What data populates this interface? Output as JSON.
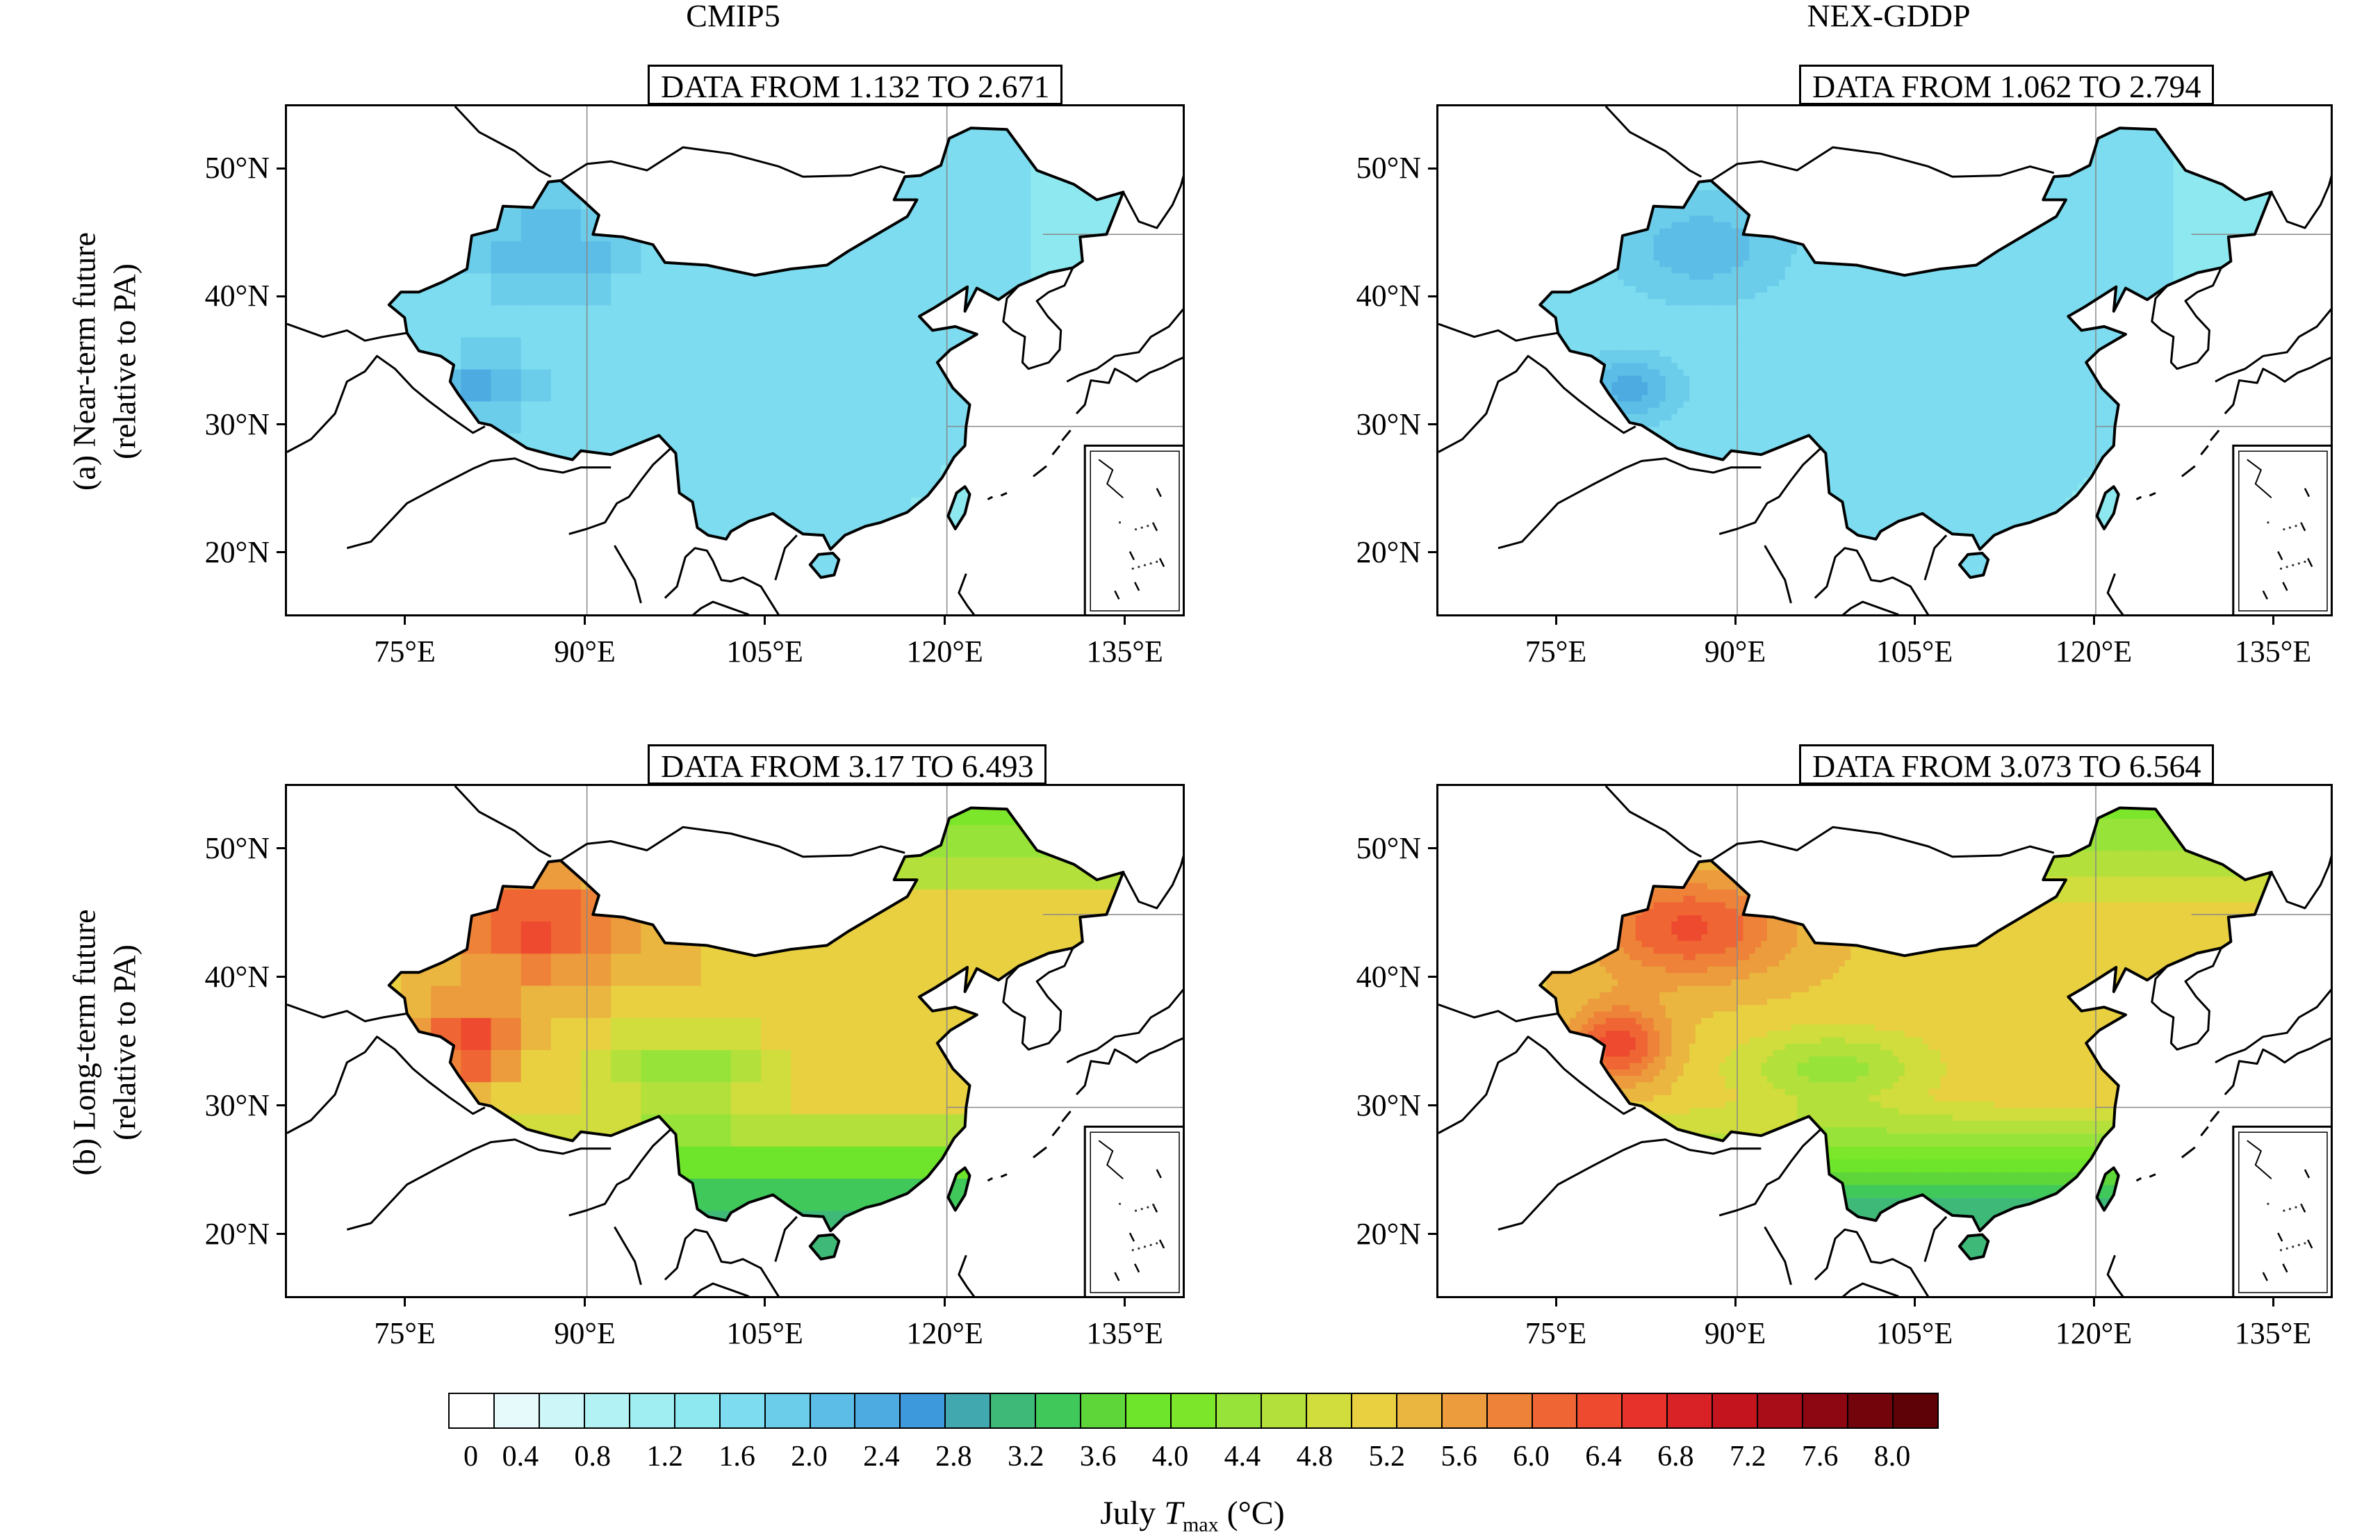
{
  "figure": {
    "column_titles": [
      "CMIP5",
      "NEX-GDDP"
    ],
    "row_labels": [
      {
        "line1": "(a) Near-term future",
        "line2": "(relative to PA)"
      },
      {
        "line1": "(b) Long-term future",
        "line2": "(relative to PA)"
      }
    ],
    "lat_ticks": [
      "50°N",
      "40°N",
      "30°N",
      "20°N"
    ],
    "lon_ticks": [
      "75°E",
      "90°E",
      "105°E",
      "120°E",
      "135°E"
    ],
    "panels": [
      {
        "id": "a-cmip5",
        "range_text": "DATA FROM 1.132 TO 2.671",
        "min": 1.132,
        "max": 2.671,
        "style": "grid"
      },
      {
        "id": "a-nex",
        "range_text": "DATA FROM 1.062 TO 2.794",
        "min": 1.062,
        "max": 2.794,
        "style": "smooth"
      },
      {
        "id": "b-cmip5",
        "range_text": "DATA FROM 3.17 TO 6.493",
        "min": 3.17,
        "max": 6.493,
        "style": "grid"
      },
      {
        "id": "b-nex",
        "range_text": "DATA FROM 3.073 TO 6.564",
        "min": 3.073,
        "max": 6.564,
        "style": "smooth"
      }
    ]
  },
  "colorbar": {
    "labels": [
      "0",
      "0.4",
      "0.8",
      "1.2",
      "1.6",
      "2.0",
      "2.4",
      "2.8",
      "3.2",
      "3.6",
      "4.0",
      "4.4",
      "4.8",
      "5.2",
      "5.6",
      "6.0",
      "6.4",
      "6.8",
      "7.2",
      "7.6",
      "8.0"
    ],
    "colors": [
      "#ffffff",
      "#e6f9fb",
      "#ccf6f8",
      "#b3f2f4",
      "#a0eef2",
      "#8ee8f0",
      "#7ddcef",
      "#6ccdeb",
      "#5cbde7",
      "#4dabe2",
      "#3d98dc",
      "#42a8b0",
      "#3fb978",
      "#40c95a",
      "#5ed63a",
      "#6ee52a",
      "#7ce62a",
      "#98e33a",
      "#b3e03a",
      "#d0dd3c",
      "#e8d041",
      "#eab640",
      "#ec9c3c",
      "#ee8238",
      "#ef6634",
      "#ed4a2f",
      "#e6322a",
      "#d82226",
      "#c4151f",
      "#a80d18",
      "#8c0712",
      "#74040c",
      "#5e0208"
    ],
    "title_prefix": "July ",
    "title_var": "T",
    "title_sub": "max",
    "title_unit": " (°C)"
  }
}
